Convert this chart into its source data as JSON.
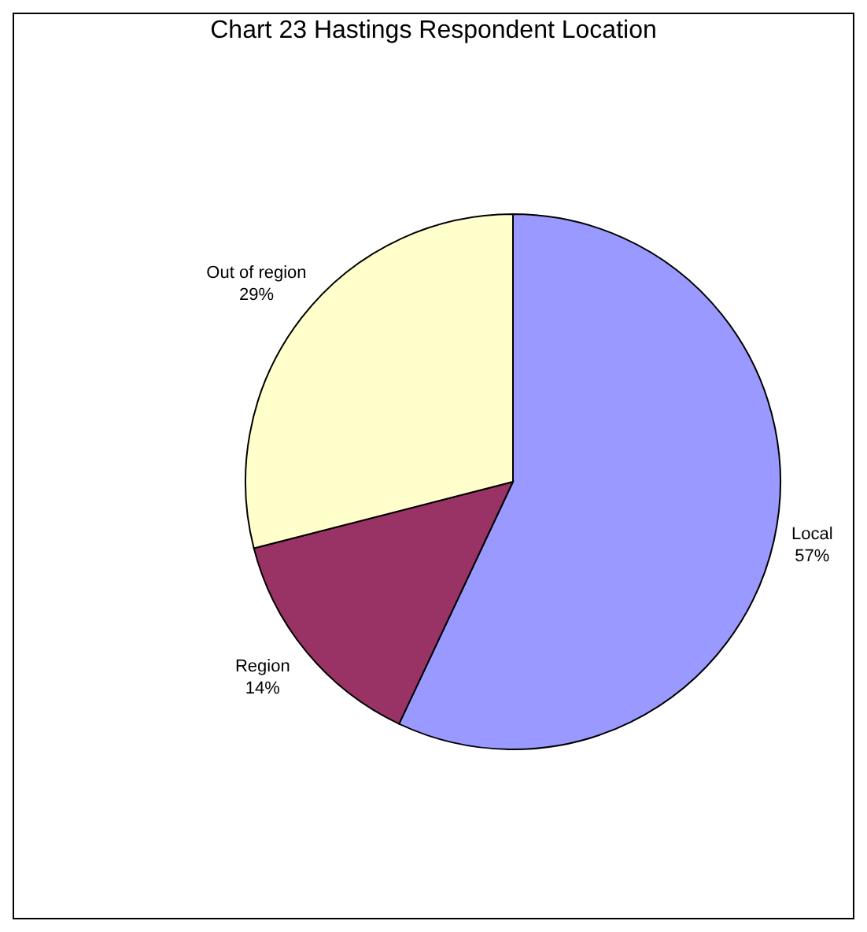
{
  "chart_data": {
    "type": "pie",
    "title": "Chart 23 Hastings Respondent Location",
    "categories": [
      "Local",
      "Region",
      "Out of region"
    ],
    "values": [
      57,
      14,
      29
    ],
    "value_labels": [
      "57%",
      "14%",
      "29%"
    ],
    "colors": [
      "#9999ff",
      "#993366",
      "#ffffcc"
    ],
    "legend": false
  }
}
